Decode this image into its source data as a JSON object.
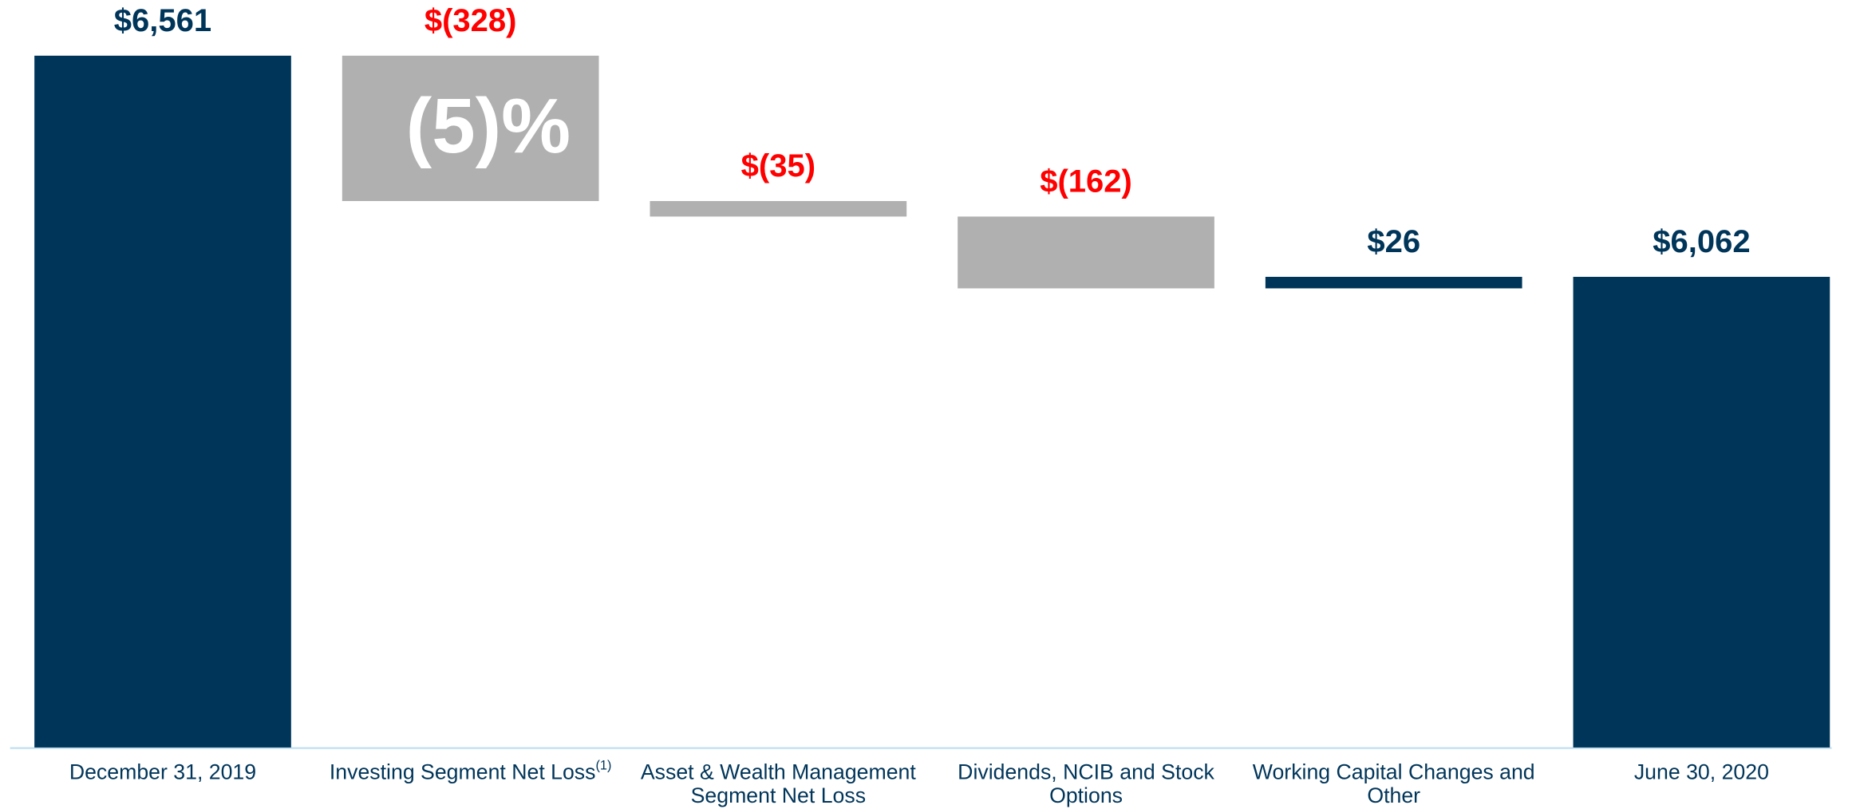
{
  "chart_data": {
    "type": "waterfall",
    "categories": [
      [
        "December 31, 2019"
      ],
      [
        "Investing Segment Net Loss"
      ],
      [
        "Asset & Wealth Management",
        "Segment Net Loss"
      ],
      [
        "Dividends, NCIB and Stock",
        "Options"
      ],
      [
        "Working Capital Changes and",
        "Other"
      ],
      [
        "June 30, 2020"
      ]
    ],
    "category_notes": {
      "1": "(1)"
    },
    "measures": [
      "absolute",
      "relative",
      "relative",
      "relative",
      "relative",
      "total"
    ],
    "values": [
      6561,
      -328,
      -35,
      -162,
      26,
      6062
    ],
    "value_labels": [
      "$6,561",
      "$(328)",
      "$(35)",
      "$(162)",
      "$26",
      "$6,062"
    ],
    "colors": [
      "#00355a",
      "#b0b0b0",
      "#b0b0b0",
      "#b0b0b0",
      "#00355a",
      "#00355a"
    ],
    "label_colors": [
      "#00355a",
      "#ff0000",
      "#ff0000",
      "#ff0000",
      "#00355a",
      "#00355a"
    ],
    "annotations": [
      {
        "text": "(5)%",
        "category": 1
      }
    ],
    "ylim": [
      5000,
      6700
    ]
  }
}
